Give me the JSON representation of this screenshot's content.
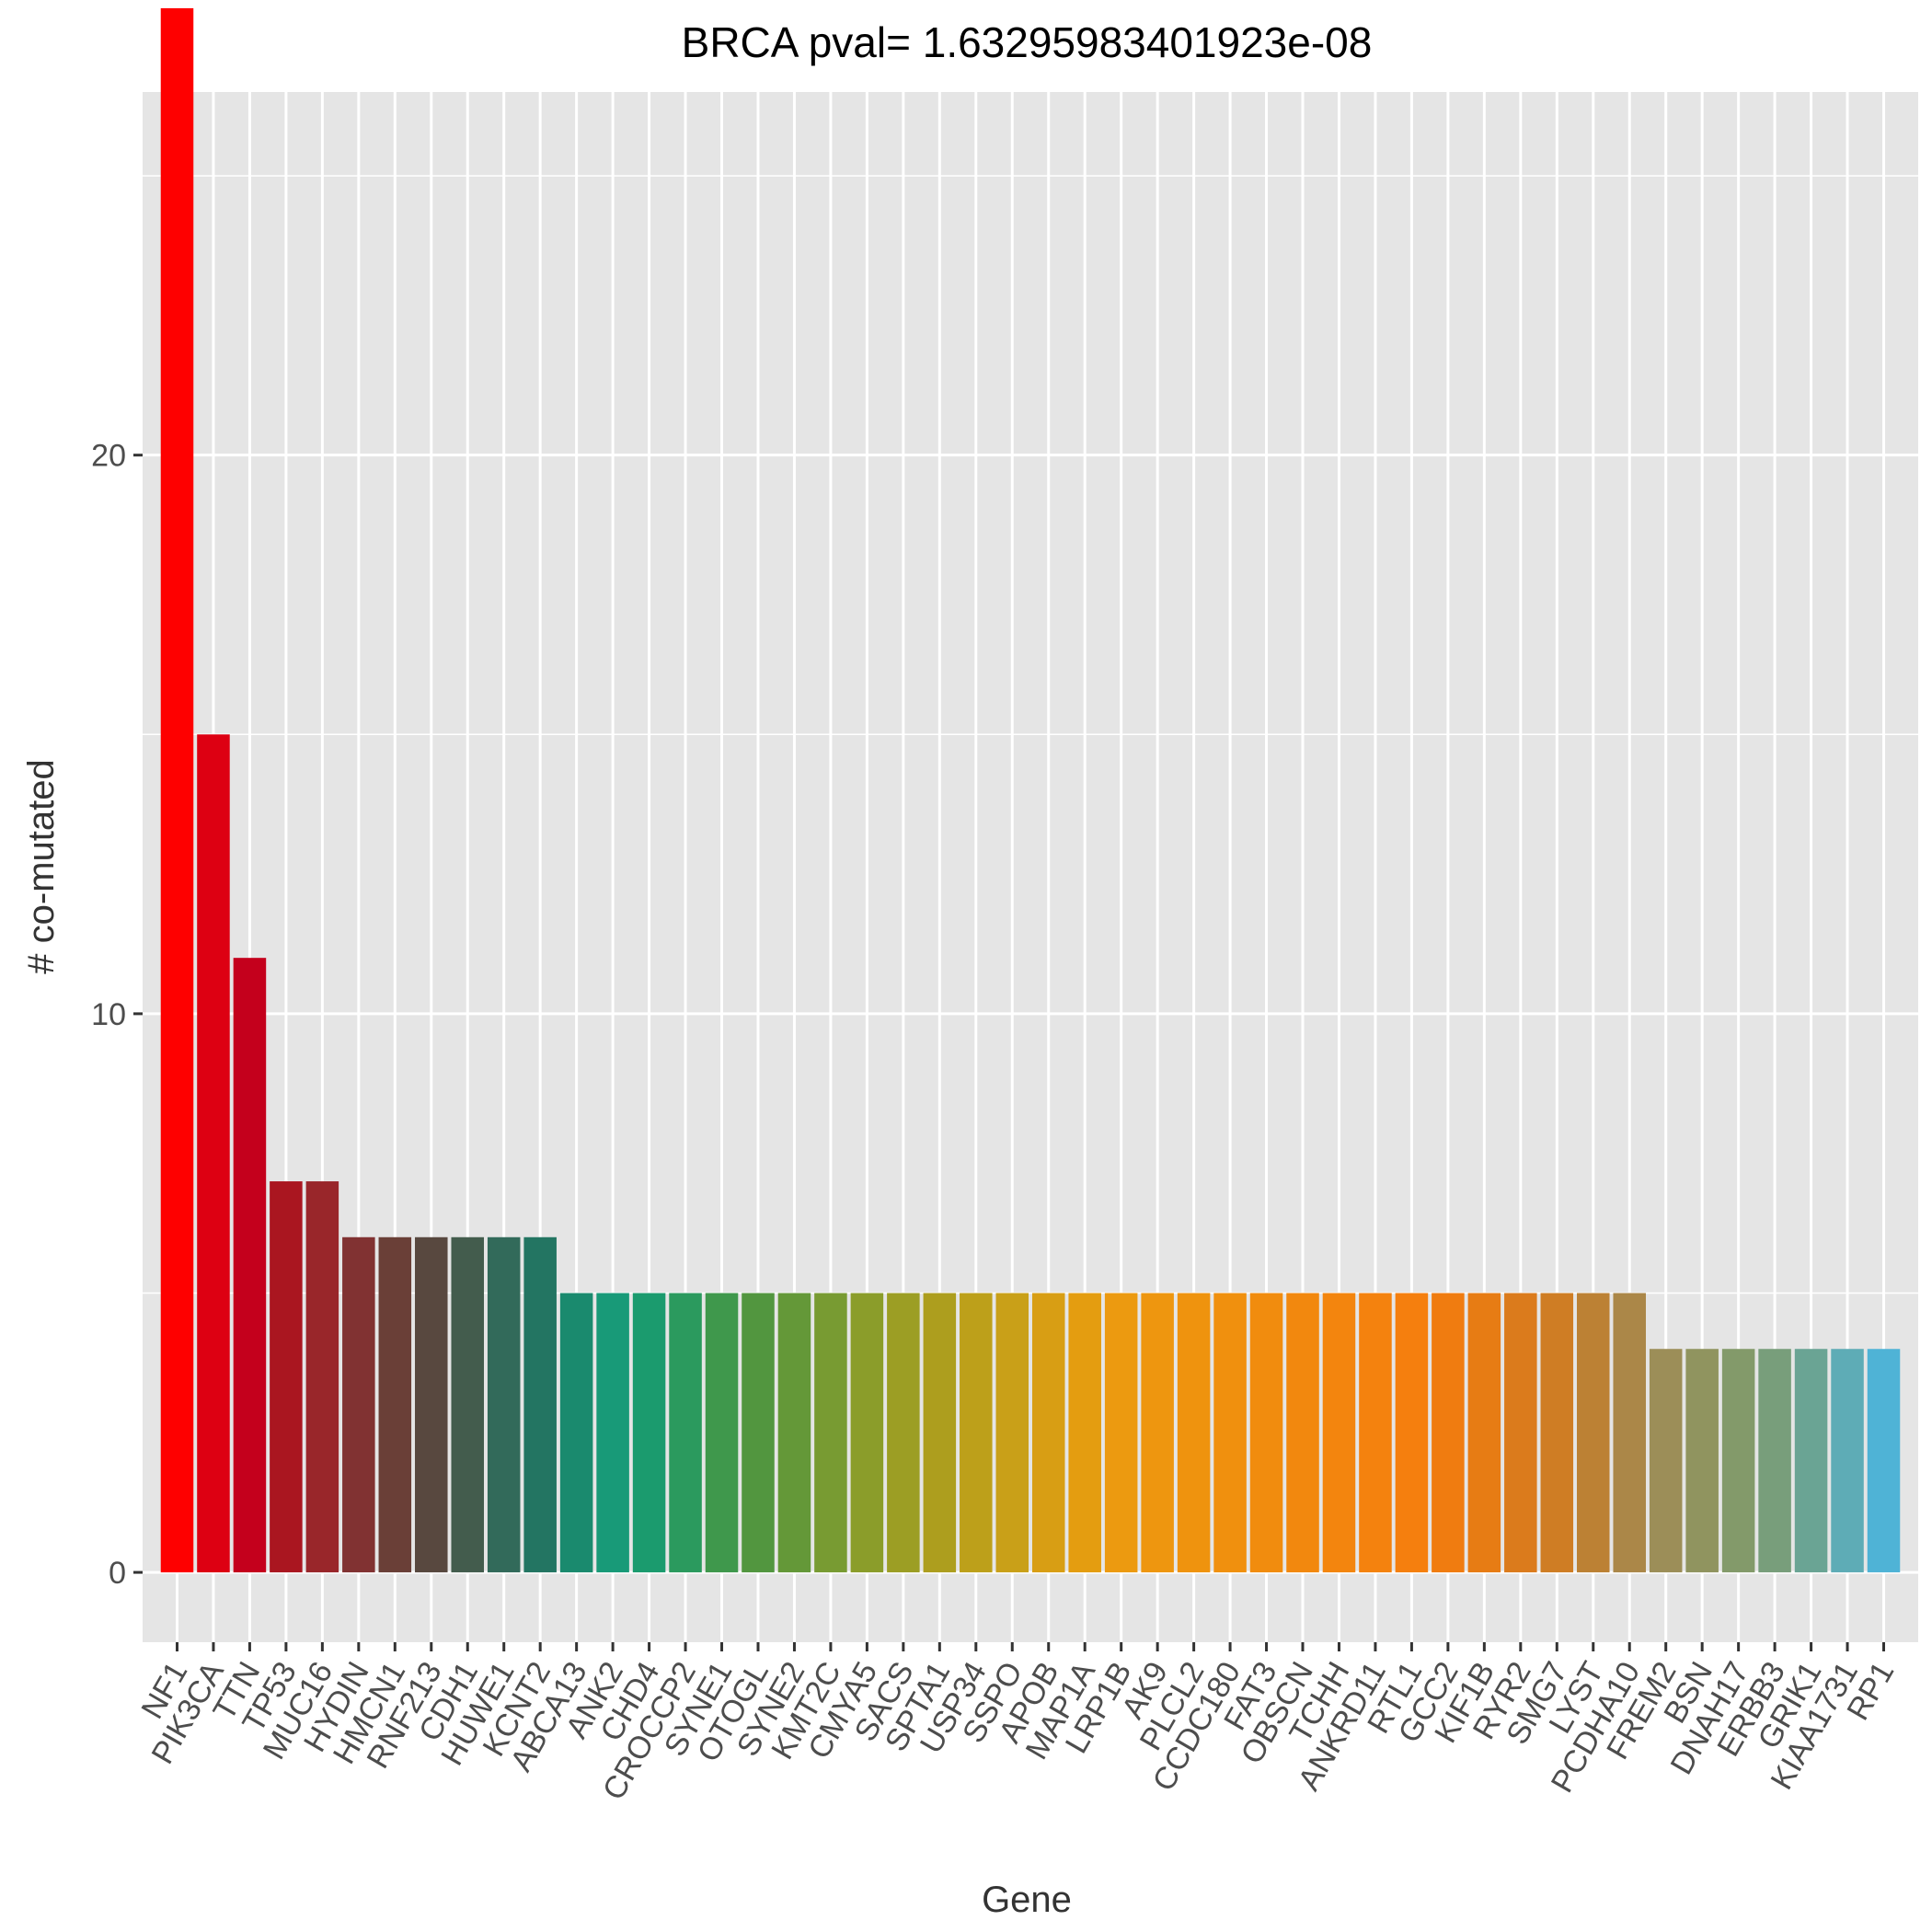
{
  "chart_data": {
    "type": "bar",
    "title": "BRCA pval= 1.63295983401923e-08",
    "xlabel": "Gene",
    "ylabel": "# co-mutated",
    "ylim": [
      -1.25,
      26.5
    ],
    "yticks": [
      0,
      10,
      20
    ],
    "grid": true,
    "legend": "none",
    "panel_background": "#e5e5e5",
    "categories": [
      "NF1",
      "PIK3CA",
      "TTN",
      "TP53",
      "MUC16",
      "HYDIN",
      "HMCN1",
      "RNF213",
      "CDH1",
      "HUWE1",
      "KCNT2",
      "ABCA13",
      "ANK2",
      "CHD4",
      "CROCCP2",
      "SYNE1",
      "OTOGL",
      "SYNE2",
      "KMT2C",
      "CMYA5",
      "SACS",
      "SPTA1",
      "USP34",
      "SSPO",
      "APOB",
      "MAP1A",
      "LRP1B",
      "AK9",
      "PLCL2",
      "CCDC180",
      "FAT3",
      "OBSCN",
      "TCHH",
      "ANKRD11",
      "RTL1",
      "GCC2",
      "KIF1B",
      "RYR2",
      "SMG7",
      "LYST",
      "PCDHA10",
      "FREM2",
      "BSN",
      "DNAH17",
      "ERBB3",
      "GRIK1",
      "KIAA1731",
      "RP1"
    ],
    "values": [
      28,
      15,
      11,
      7,
      7,
      6,
      6,
      6,
      6,
      6,
      6,
      5,
      5,
      5,
      5,
      5,
      5,
      5,
      5,
      5,
      5,
      5,
      5,
      5,
      5,
      5,
      5,
      5,
      5,
      5,
      5,
      5,
      5,
      5,
      5,
      5,
      5,
      5,
      5,
      5,
      5,
      4,
      4,
      4,
      4,
      4,
      4,
      4
    ],
    "colors": [
      "#fe0000",
      "#dd0012",
      "#c4001c",
      "#aa1620",
      "#99262a",
      "#813232",
      "#6a3f37",
      "#58483f",
      "#435c4d",
      "#326a5a",
      "#237562",
      "#1a8a6e",
      "#189a78",
      "#1b9b6e",
      "#2b9a5e",
      "#3f984c",
      "#52963f",
      "#649838",
      "#789b32",
      "#8b9d2a",
      "#9c9e24",
      "#ad9e1e",
      "#bda01a",
      "#c9a018",
      "#d89e14",
      "#e49d10",
      "#ec9a10",
      "#ee960f",
      "#ef930e",
      "#f0900e",
      "#f18c0e",
      "#f2880e",
      "#f3850e",
      "#f4820e",
      "#f57f0e",
      "#f07c10",
      "#e77c14",
      "#db7b1c",
      "#cf7d24",
      "#bc8134",
      "#ab8748",
      "#9c8e58",
      "#90945f",
      "#839a6a",
      "#789e7b",
      "#6aa494",
      "#5eacb6",
      "#4fb3d6"
    ]
  }
}
